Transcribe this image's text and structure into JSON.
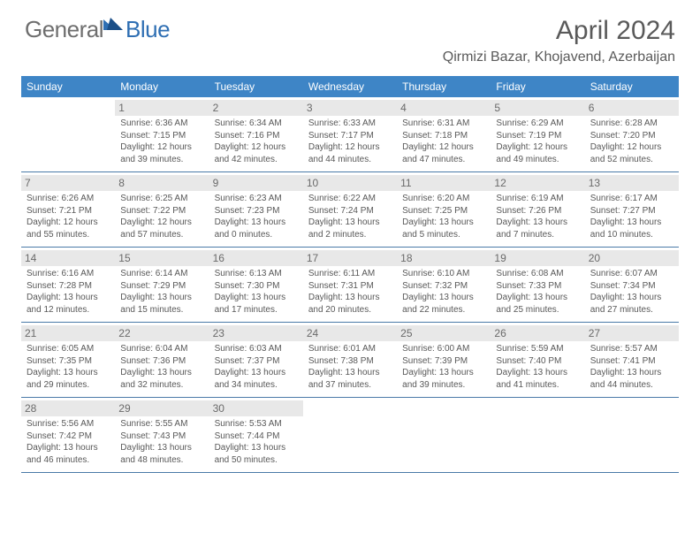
{
  "brand": {
    "part1": "General",
    "part2": "Blue"
  },
  "title": "April 2024",
  "location": "Qirmizi Bazar, Khojavend, Azerbaijan",
  "style": {
    "header_bg": "#3e85c6",
    "header_text": "#ffffff",
    "daybar_bg": "#e8e8e8",
    "rule_color": "#4a7aa8",
    "text_color": "#585858",
    "title_color": "#5a5a5a",
    "logo_gray": "#6e6e6e",
    "logo_blue": "#2f6fb3",
    "page_bg": "#ffffff",
    "day_fontsize": 12,
    "info_fontsize": 10,
    "title_fontsize": 30,
    "location_fontsize": 16
  },
  "day_names": [
    "Sunday",
    "Monday",
    "Tuesday",
    "Wednesday",
    "Thursday",
    "Friday",
    "Saturday"
  ],
  "weeks": [
    [
      null,
      {
        "n": "1",
        "sr": "6:36 AM",
        "ss": "7:15 PM",
        "dl": "12 hours and 39 minutes."
      },
      {
        "n": "2",
        "sr": "6:34 AM",
        "ss": "7:16 PM",
        "dl": "12 hours and 42 minutes."
      },
      {
        "n": "3",
        "sr": "6:33 AM",
        "ss": "7:17 PM",
        "dl": "12 hours and 44 minutes."
      },
      {
        "n": "4",
        "sr": "6:31 AM",
        "ss": "7:18 PM",
        "dl": "12 hours and 47 minutes."
      },
      {
        "n": "5",
        "sr": "6:29 AM",
        "ss": "7:19 PM",
        "dl": "12 hours and 49 minutes."
      },
      {
        "n": "6",
        "sr": "6:28 AM",
        "ss": "7:20 PM",
        "dl": "12 hours and 52 minutes."
      }
    ],
    [
      {
        "n": "7",
        "sr": "6:26 AM",
        "ss": "7:21 PM",
        "dl": "12 hours and 55 minutes."
      },
      {
        "n": "8",
        "sr": "6:25 AM",
        "ss": "7:22 PM",
        "dl": "12 hours and 57 minutes."
      },
      {
        "n": "9",
        "sr": "6:23 AM",
        "ss": "7:23 PM",
        "dl": "13 hours and 0 minutes."
      },
      {
        "n": "10",
        "sr": "6:22 AM",
        "ss": "7:24 PM",
        "dl": "13 hours and 2 minutes."
      },
      {
        "n": "11",
        "sr": "6:20 AM",
        "ss": "7:25 PM",
        "dl": "13 hours and 5 minutes."
      },
      {
        "n": "12",
        "sr": "6:19 AM",
        "ss": "7:26 PM",
        "dl": "13 hours and 7 minutes."
      },
      {
        "n": "13",
        "sr": "6:17 AM",
        "ss": "7:27 PM",
        "dl": "13 hours and 10 minutes."
      }
    ],
    [
      {
        "n": "14",
        "sr": "6:16 AM",
        "ss": "7:28 PM",
        "dl": "13 hours and 12 minutes."
      },
      {
        "n": "15",
        "sr": "6:14 AM",
        "ss": "7:29 PM",
        "dl": "13 hours and 15 minutes."
      },
      {
        "n": "16",
        "sr": "6:13 AM",
        "ss": "7:30 PM",
        "dl": "13 hours and 17 minutes."
      },
      {
        "n": "17",
        "sr": "6:11 AM",
        "ss": "7:31 PM",
        "dl": "13 hours and 20 minutes."
      },
      {
        "n": "18",
        "sr": "6:10 AM",
        "ss": "7:32 PM",
        "dl": "13 hours and 22 minutes."
      },
      {
        "n": "19",
        "sr": "6:08 AM",
        "ss": "7:33 PM",
        "dl": "13 hours and 25 minutes."
      },
      {
        "n": "20",
        "sr": "6:07 AM",
        "ss": "7:34 PM",
        "dl": "13 hours and 27 minutes."
      }
    ],
    [
      {
        "n": "21",
        "sr": "6:05 AM",
        "ss": "7:35 PM",
        "dl": "13 hours and 29 minutes."
      },
      {
        "n": "22",
        "sr": "6:04 AM",
        "ss": "7:36 PM",
        "dl": "13 hours and 32 minutes."
      },
      {
        "n": "23",
        "sr": "6:03 AM",
        "ss": "7:37 PM",
        "dl": "13 hours and 34 minutes."
      },
      {
        "n": "24",
        "sr": "6:01 AM",
        "ss": "7:38 PM",
        "dl": "13 hours and 37 minutes."
      },
      {
        "n": "25",
        "sr": "6:00 AM",
        "ss": "7:39 PM",
        "dl": "13 hours and 39 minutes."
      },
      {
        "n": "26",
        "sr": "5:59 AM",
        "ss": "7:40 PM",
        "dl": "13 hours and 41 minutes."
      },
      {
        "n": "27",
        "sr": "5:57 AM",
        "ss": "7:41 PM",
        "dl": "13 hours and 44 minutes."
      }
    ],
    [
      {
        "n": "28",
        "sr": "5:56 AM",
        "ss": "7:42 PM",
        "dl": "13 hours and 46 minutes."
      },
      {
        "n": "29",
        "sr": "5:55 AM",
        "ss": "7:43 PM",
        "dl": "13 hours and 48 minutes."
      },
      {
        "n": "30",
        "sr": "5:53 AM",
        "ss": "7:44 PM",
        "dl": "13 hours and 50 minutes."
      },
      null,
      null,
      null,
      null
    ]
  ],
  "labels": {
    "sunrise": "Sunrise:",
    "sunset": "Sunset:",
    "daylight": "Daylight:"
  }
}
